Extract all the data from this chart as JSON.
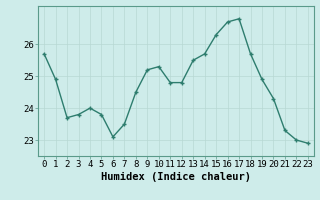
{
  "x": [
    0,
    1,
    2,
    3,
    4,
    5,
    6,
    7,
    8,
    9,
    10,
    11,
    12,
    13,
    14,
    15,
    16,
    17,
    18,
    19,
    20,
    21,
    22,
    23
  ],
  "y": [
    25.7,
    24.9,
    23.7,
    23.8,
    24.0,
    23.8,
    23.1,
    23.5,
    24.5,
    25.2,
    25.3,
    24.8,
    24.8,
    25.5,
    25.7,
    26.3,
    26.7,
    26.8,
    25.7,
    24.9,
    24.3,
    23.3,
    23.0,
    22.9
  ],
  "line_color": "#2e7d6e",
  "marker_color": "#2e7d6e",
  "bg_color": "#ceecea",
  "grid_color": "#b8d8d4",
  "xlabel": "Humidex (Indice chaleur)",
  "ylim": [
    22.5,
    27.2
  ],
  "yticks": [
    23,
    24,
    25,
    26
  ],
  "xlim": [
    -0.5,
    23.5
  ],
  "linewidth": 1.0,
  "markersize": 3.5,
  "xlabel_fontsize": 7.5,
  "tick_fontsize": 6.5
}
